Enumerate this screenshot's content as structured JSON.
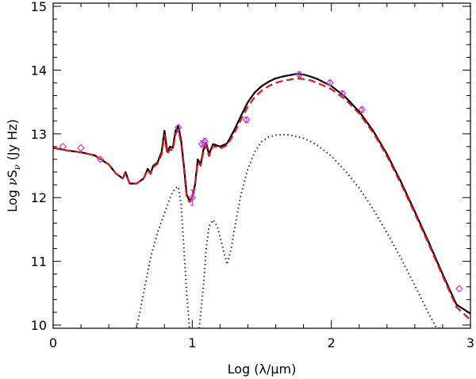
{
  "chart_data": {
    "type": "line",
    "xlabel": "Log (λ/μm)",
    "ylabel_prefix": "Log ",
    "ylabel_nu": "ν",
    "ylabel_S": "S",
    "ylabel_sub": "ν",
    "ylabel_unit": " (Jy Hz)",
    "xlim": [
      0,
      3
    ],
    "ylim": [
      9.95,
      15.05
    ],
    "x_ticks": [
      0,
      1,
      2,
      3
    ],
    "x_tick_labels": [
      "0",
      "1",
      "2",
      "3"
    ],
    "y_ticks": [
      10,
      11,
      12,
      13,
      14,
      15
    ],
    "y_tick_labels": [
      "10",
      "11",
      "12",
      "13",
      "14",
      "15"
    ],
    "series": [
      {
        "style": "solid",
        "color": "#000000",
        "x": [
          0.0,
          0.1,
          0.2,
          0.3,
          0.4,
          0.45,
          0.5,
          0.52,
          0.55,
          0.6,
          0.65,
          0.68,
          0.7,
          0.72,
          0.75,
          0.78,
          0.8,
          0.82,
          0.84,
          0.86,
          0.88,
          0.9,
          0.92,
          0.94,
          0.96,
          0.98,
          1.0,
          1.02,
          1.04,
          1.06,
          1.08,
          1.1,
          1.12,
          1.15,
          1.2,
          1.25,
          1.3,
          1.35,
          1.4,
          1.45,
          1.5,
          1.55,
          1.6,
          1.65,
          1.7,
          1.75,
          1.8,
          1.85,
          1.9,
          2.0,
          2.1,
          2.2,
          2.3,
          2.4,
          2.5,
          2.6,
          2.7,
          2.8,
          2.9,
          3.0
        ],
        "y": [
          12.78,
          12.74,
          12.71,
          12.66,
          12.52,
          12.38,
          12.3,
          12.4,
          12.22,
          12.22,
          12.3,
          12.45,
          12.38,
          12.5,
          12.55,
          12.72,
          13.05,
          12.72,
          12.8,
          12.78,
          13.05,
          13.12,
          12.9,
          12.5,
          12.05,
          11.95,
          12.0,
          12.2,
          12.6,
          12.52,
          12.75,
          12.86,
          12.68,
          12.84,
          12.8,
          12.85,
          13.05,
          13.28,
          13.5,
          13.65,
          13.75,
          13.82,
          13.87,
          13.9,
          13.92,
          13.94,
          13.93,
          13.9,
          13.86,
          13.75,
          13.58,
          13.35,
          13.05,
          12.68,
          12.25,
          11.78,
          11.3,
          10.8,
          10.32,
          10.18
        ]
      },
      {
        "style": "dashed",
        "color": "#e8141c",
        "x": [
          0.0,
          0.1,
          0.2,
          0.3,
          0.4,
          0.45,
          0.5,
          0.52,
          0.55,
          0.6,
          0.65,
          0.68,
          0.7,
          0.72,
          0.75,
          0.78,
          0.8,
          0.82,
          0.84,
          0.86,
          0.88,
          0.9,
          0.92,
          0.94,
          0.96,
          0.98,
          1.0,
          1.02,
          1.04,
          1.06,
          1.08,
          1.1,
          1.12,
          1.15,
          1.2,
          1.25,
          1.3,
          1.35,
          1.4,
          1.45,
          1.5,
          1.55,
          1.6,
          1.65,
          1.7,
          1.75,
          1.8,
          1.85,
          1.9,
          2.0,
          2.1,
          2.2,
          2.3,
          2.4,
          2.5,
          2.6,
          2.7,
          2.8,
          2.9,
          3.0
        ],
        "y": [
          12.78,
          12.74,
          12.71,
          12.66,
          12.52,
          12.38,
          12.3,
          12.38,
          12.22,
          12.22,
          12.3,
          12.43,
          12.37,
          12.48,
          12.53,
          12.68,
          12.98,
          12.68,
          12.76,
          12.74,
          13.0,
          13.06,
          12.85,
          12.45,
          12.0,
          11.93,
          11.98,
          12.18,
          12.56,
          12.5,
          12.72,
          12.82,
          12.65,
          12.81,
          12.77,
          12.82,
          13.0,
          13.22,
          13.43,
          13.58,
          13.68,
          13.75,
          13.8,
          13.83,
          13.85,
          13.87,
          13.86,
          13.84,
          13.8,
          13.7,
          13.54,
          13.32,
          13.02,
          12.65,
          12.22,
          11.75,
          11.27,
          10.77,
          10.28,
          10.08
        ]
      },
      {
        "style": "dotted",
        "color": "#1c1ca8",
        "segments": [
          {
            "x": [
              0.6,
              0.65,
              0.7,
              0.75,
              0.8,
              0.85,
              0.88,
              0.9,
              0.92,
              0.94,
              0.96,
              0.98
            ],
            "y": [
              9.95,
              10.5,
              11.05,
              11.45,
              11.75,
              12.05,
              12.15,
              12.17,
              11.9,
              11.2,
              10.5,
              9.95
            ]
          },
          {
            "x": [
              1.05,
              1.08,
              1.1,
              1.12,
              1.15,
              1.18,
              1.2,
              1.25,
              1.28,
              1.32,
              1.35,
              1.4,
              1.45,
              1.5,
              1.55,
              1.6,
              1.65,
              1.7,
              1.75,
              1.8,
              1.85,
              1.9,
              2.0,
              2.1,
              2.2,
              2.3,
              2.4,
              2.5,
              2.6,
              2.7,
              2.75,
              2.78
            ],
            "y": [
              9.95,
              10.6,
              11.2,
              11.55,
              11.65,
              11.55,
              11.38,
              10.95,
              11.2,
              11.7,
              12.05,
              12.45,
              12.72,
              12.88,
              12.95,
              12.98,
              12.99,
              12.98,
              12.96,
              12.93,
              12.88,
              12.82,
              12.65,
              12.42,
              12.15,
              11.82,
              11.45,
              11.05,
              10.62,
              10.18,
              9.98,
              9.95
            ]
          }
        ]
      }
    ],
    "observations": {
      "color": "#c43fd0",
      "points": [
        {
          "x": 0.07,
          "y": 12.8,
          "err": 0.0
        },
        {
          "x": 0.2,
          "y": 12.78,
          "err": 0.0
        },
        {
          "x": 0.34,
          "y": 12.6,
          "err": 0.0
        },
        {
          "x": 0.9,
          "y": 13.1,
          "err": 0.0
        },
        {
          "x": 1.0,
          "y": 12.0,
          "err": 0.12
        },
        {
          "x": 1.07,
          "y": 12.84,
          "err": 0.05
        },
        {
          "x": 1.09,
          "y": 12.88,
          "err": 0.05
        },
        {
          "x": 1.39,
          "y": 13.22,
          "err": 0.04
        },
        {
          "x": 1.77,
          "y": 13.93,
          "err": 0.04
        },
        {
          "x": 1.99,
          "y": 13.8,
          "err": 0.04
        },
        {
          "x": 2.08,
          "y": 13.63,
          "err": 0.04
        },
        {
          "x": 2.22,
          "y": 13.38,
          "err": 0.04
        },
        {
          "x": 2.92,
          "y": 10.57,
          "err": 0.0
        }
      ]
    },
    "grid": false,
    "legend": "none"
  }
}
